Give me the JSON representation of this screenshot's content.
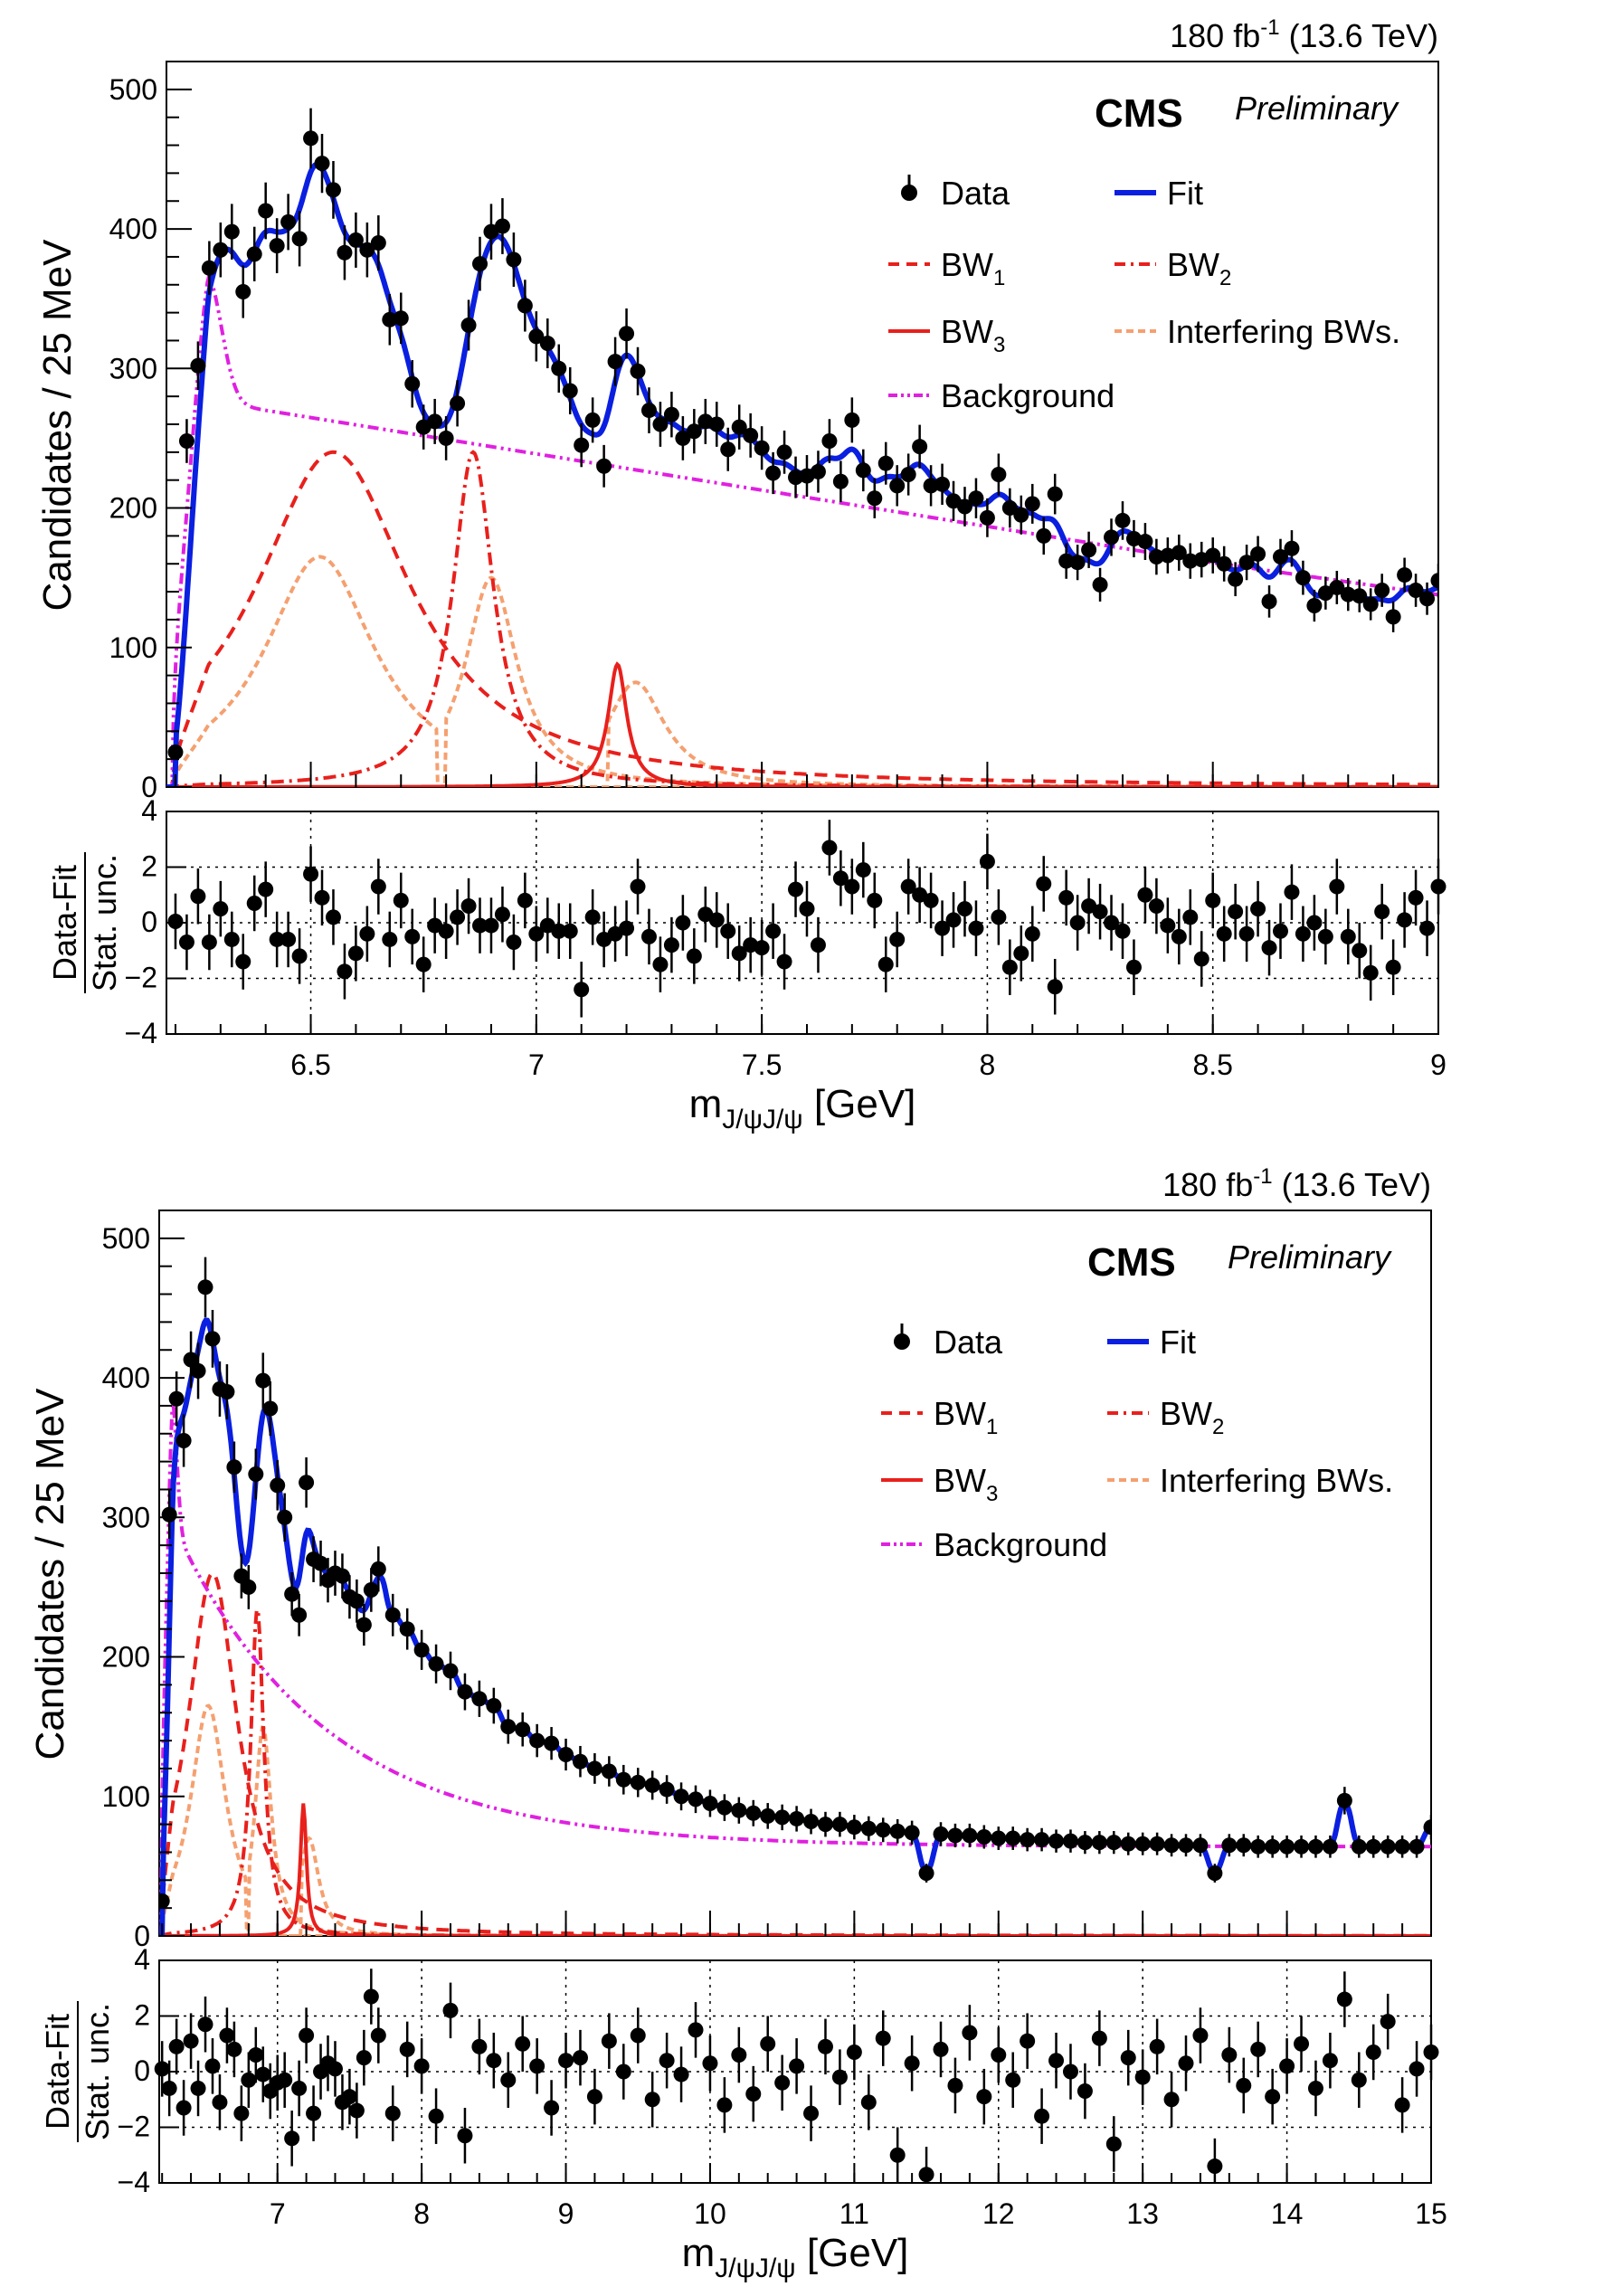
{
  "colors": {
    "data": "#000000",
    "fit": "#0a1fe0",
    "bw": "#e8201c",
    "interfering": "#f5a070",
    "background": "#e020e0",
    "grid": "#000000"
  },
  "chart_data": [
    {
      "id": "top",
      "type": "scatter",
      "lumi_label": "180 fb",
      "lumi_sup": "-1",
      "lumi_energy": " (13.6 TeV)",
      "cms_label": "CMS",
      "prelim_label": "Preliminary",
      "ylabel": "Candidates / 25 MeV",
      "xlabel_main": "m",
      "xlabel_sub": "J/ψJ/ψ",
      "xlabel_unit": " [GeV]",
      "res_label_num": "Data-Fit",
      "res_label_den": "Stat. unc.",
      "xlim": [
        6.18,
        9.0
      ],
      "ylim": [
        0,
        520
      ],
      "res_ylim": [
        -4,
        4
      ],
      "x_ticks": [
        6.5,
        7,
        7.5,
        8,
        8.5,
        9
      ],
      "x_tick_labels": [
        "6.5",
        "7",
        "7.5",
        "8",
        "8.5",
        "9"
      ],
      "y_ticks": [
        0,
        100,
        200,
        300,
        400,
        500
      ],
      "y_tick_labels": [
        "0",
        "100",
        "200",
        "300",
        "400",
        "500"
      ],
      "res_y_ticks": [
        -4,
        -2,
        0,
        2,
        4
      ],
      "res_y_tick_labels": [
        "−4",
        "−2",
        "0",
        "2",
        "4"
      ],
      "legend": {
        "data": "Data",
        "fit": "Fit",
        "bw1": "BW",
        "bw1_sub": "1",
        "bw2": "BW",
        "bw2_sub": "2",
        "bw3": "BW",
        "bw3_sub": "3",
        "interfering": "Interfering BWs.",
        "background": "Background"
      },
      "components": {
        "bw1": {
          "mass": 6.55,
          "width": 0.42,
          "peak": 240
        },
        "bw1_interf": {
          "mass": 6.52,
          "width": 0.3,
          "peak": 165
        },
        "bw2": {
          "mass": 6.86,
          "width": 0.11,
          "peak": 240
        },
        "bw2_interf": {
          "mass": 6.9,
          "width": 0.14,
          "peak": 150
        },
        "bw3": {
          "mass": 7.18,
          "width": 0.05,
          "peak": 88
        },
        "bw3_interf": {
          "mass": 7.22,
          "width": 0.16,
          "peak": 75
        }
      },
      "data_x": [
        6.2,
        6.225,
        6.25,
        6.275,
        6.3,
        6.325,
        6.35,
        6.375,
        6.4,
        6.425,
        6.45,
        6.475,
        6.5,
        6.525,
        6.55,
        6.575,
        6.6,
        6.625,
        6.65,
        6.675,
        6.7,
        6.725,
        6.75,
        6.775,
        6.8,
        6.825,
        6.85,
        6.875,
        6.9,
        6.925,
        6.95,
        6.975,
        7.0,
        7.025,
        7.05,
        7.075,
        7.1,
        7.125,
        7.15,
        7.175,
        7.2,
        7.225,
        7.25,
        7.275,
        7.3,
        7.325,
        7.35,
        7.375,
        7.4,
        7.425,
        7.45,
        7.475,
        7.5,
        7.525,
        7.55,
        7.575,
        7.6,
        7.625,
        7.65,
        7.675,
        7.7,
        7.725,
        7.75,
        7.775,
        7.8,
        7.825,
        7.85,
        7.875,
        7.9,
        7.925,
        7.95,
        7.975,
        8.0,
        8.025,
        8.05,
        8.075,
        8.1,
        8.125,
        8.15,
        8.175,
        8.2,
        8.225,
        8.25,
        8.275,
        8.3,
        8.325,
        8.35,
        8.375,
        8.4,
        8.425,
        8.45,
        8.475,
        8.5,
        8.525,
        8.55,
        8.575,
        8.6,
        8.625,
        8.65,
        8.675,
        8.7,
        8.725,
        8.75,
        8.775,
        8.8,
        8.825,
        8.85,
        8.875,
        8.9,
        8.925,
        8.95,
        8.975,
        9.0
      ],
      "data_y": [
        25,
        248,
        302,
        372,
        385,
        398,
        355,
        382,
        413,
        388,
        405,
        393,
        465,
        447,
        428,
        383,
        392,
        385,
        390,
        335,
        336,
        289,
        258,
        262,
        250,
        275,
        331,
        375,
        398,
        402,
        378,
        345,
        323,
        318,
        300,
        284,
        245,
        263,
        230,
        305,
        325,
        298,
        270,
        260,
        267,
        250,
        255,
        262,
        260,
        242,
        258,
        252,
        243,
        225,
        240,
        222,
        223,
        226,
        248,
        219,
        263,
        227,
        207,
        232,
        216,
        224,
        244,
        216,
        217,
        205,
        201,
        207,
        193,
        224,
        200,
        195,
        203,
        180,
        210,
        162,
        161,
        170,
        145,
        179,
        191,
        178,
        176,
        165,
        166,
        168,
        162,
        163,
        166,
        160,
        149,
        161,
        167,
        133,
        165,
        171,
        150,
        130,
        139,
        143,
        138,
        137,
        131,
        141,
        122,
        152,
        141,
        135,
        148
      ],
      "res_x": [
        6.2,
        6.225,
        6.25,
        6.275,
        6.3,
        6.325,
        6.35,
        6.375,
        6.4,
        6.425,
        6.45,
        6.475,
        6.5,
        6.525,
        6.55,
        6.575,
        6.6,
        6.625,
        6.65,
        6.675,
        6.7,
        6.725,
        6.75,
        6.775,
        6.8,
        6.825,
        6.85,
        6.875,
        6.9,
        6.925,
        6.95,
        6.975,
        7.0,
        7.025,
        7.05,
        7.075,
        7.1,
        7.125,
        7.15,
        7.175,
        7.2,
        7.225,
        7.25,
        7.275,
        7.3,
        7.325,
        7.35,
        7.375,
        7.4,
        7.425,
        7.45,
        7.475,
        7.5,
        7.525,
        7.55,
        7.575,
        7.6,
        7.625,
        7.65,
        7.675,
        7.7,
        7.725,
        7.75,
        7.775,
        7.8,
        7.825,
        7.85,
        7.875,
        7.9,
        7.925,
        7.95,
        7.975,
        8.0,
        8.025,
        8.05,
        8.075,
        8.1,
        8.125,
        8.15,
        8.175,
        8.2,
        8.225,
        8.25,
        8.275,
        8.3,
        8.325,
        8.35,
        8.375,
        8.4,
        8.425,
        8.45,
        8.475,
        8.5,
        8.525,
        8.55,
        8.575,
        8.6,
        8.625,
        8.65,
        8.675,
        8.7,
        8.725,
        8.75,
        8.775,
        8.8,
        8.825,
        8.85,
        8.875,
        8.9,
        8.925,
        8.95,
        8.975,
        9.0
      ],
      "res_y": [
        0.05,
        -0.7,
        0.95,
        -0.7,
        0.5,
        -0.6,
        -1.4,
        0.7,
        1.2,
        -0.6,
        -0.6,
        -1.2,
        1.75,
        0.9,
        0.2,
        -1.75,
        -1.1,
        -0.4,
        1.3,
        -0.6,
        0.8,
        -0.5,
        -1.5,
        -0.1,
        -0.3,
        0.2,
        0.6,
        -0.1,
        -0.1,
        0.3,
        -0.7,
        0.8,
        -0.4,
        -0.1,
        -0.3,
        -0.3,
        -2.4,
        0.2,
        -0.6,
        -0.4,
        -0.2,
        1.3,
        -0.5,
        -1.5,
        -0.8,
        0.0,
        -1.2,
        0.3,
        0.1,
        -0.3,
        -1.1,
        -0.8,
        -0.9,
        -0.3,
        -1.4,
        1.2,
        0.5,
        -0.8,
        2.7,
        1.6,
        1.3,
        1.9,
        0.8,
        -1.5,
        -0.6,
        1.3,
        1.0,
        0.8,
        -0.2,
        0.1,
        0.5,
        -0.2,
        2.2,
        0.2,
        -1.6,
        -1.1,
        -0.4,
        1.4,
        -2.3,
        0.9,
        0.0,
        0.6,
        0.4,
        0.0,
        -0.3,
        -1.6,
        1.0,
        0.6,
        -0.1,
        -0.5,
        0.2,
        -1.3,
        0.8,
        -0.4,
        0.4,
        -0.4,
        0.5,
        -0.9,
        -0.3,
        1.1,
        -0.4,
        0.0,
        -0.5,
        1.3,
        -0.5,
        -1.0,
        -1.8,
        0.4,
        -1.6,
        0.1,
        0.9,
        -0.2,
        1.3
      ]
    },
    {
      "id": "bottom",
      "type": "scatter",
      "lumi_label": "180 fb",
      "lumi_sup": "-1",
      "lumi_energy": " (13.6 TeV)",
      "cms_label": "CMS",
      "prelim_label": "Preliminary",
      "ylabel": "Candidates / 25 MeV",
      "xlabel_main": "m",
      "xlabel_sub": "J/ψJ/ψ",
      "xlabel_unit": " [GeV]",
      "res_label_num": "Data-Fit",
      "res_label_den": "Stat. unc.",
      "xlim": [
        6.18,
        15.0
      ],
      "ylim": [
        0,
        520
      ],
      "res_ylim": [
        -4,
        4
      ],
      "x_ticks": [
        7,
        8,
        9,
        10,
        11,
        12,
        13,
        14,
        15
      ],
      "x_tick_labels": [
        "7",
        "8",
        "9",
        "10",
        "11",
        "12",
        "13",
        "14",
        "15"
      ],
      "y_ticks": [
        0,
        100,
        200,
        300,
        400,
        500
      ],
      "y_tick_labels": [
        "0",
        "100",
        "200",
        "300",
        "400",
        "500"
      ],
      "res_y_ticks": [
        -4,
        -2,
        0,
        2,
        4
      ],
      "res_y_tick_labels": [
        "−4",
        "−2",
        "0",
        "2",
        "4"
      ],
      "legend": {
        "data": "Data",
        "fit": "Fit",
        "bw1": "BW",
        "bw1_sub": "1",
        "bw2": "BW",
        "bw2_sub": "2",
        "bw3": "BW",
        "bw3_sub": "3",
        "interfering": "Interfering BWs.",
        "background": "Background"
      },
      "components": {
        "bw1": {
          "mass": 6.55,
          "width": 0.42,
          "peak": 260
        },
        "bw1_interf": {
          "mass": 6.52,
          "width": 0.3,
          "peak": 165
        },
        "bw2": {
          "mass": 6.86,
          "width": 0.11,
          "peak": 235
        },
        "bw2_interf": {
          "mass": 6.9,
          "width": 0.14,
          "peak": 150
        },
        "bw3": {
          "mass": 7.18,
          "width": 0.05,
          "peak": 95
        },
        "bw3_interf": {
          "mass": 7.22,
          "width": 0.16,
          "peak": 70
        }
      },
      "data_x": [
        6.2,
        6.25,
        6.3,
        6.35,
        6.4,
        6.45,
        6.5,
        6.55,
        6.6,
        6.65,
        6.7,
        6.75,
        6.8,
        6.85,
        6.9,
        6.95,
        7.0,
        7.05,
        7.1,
        7.15,
        7.2,
        7.25,
        7.3,
        7.35,
        7.4,
        7.45,
        7.5,
        7.55,
        7.6,
        7.65,
        7.7,
        7.8,
        7.9,
        8.0,
        8.1,
        8.2,
        8.3,
        8.4,
        8.5,
        8.6,
        8.7,
        8.8,
        8.9,
        9.0,
        9.1,
        9.2,
        9.3,
        9.4,
        9.5,
        9.6,
        9.7,
        9.8,
        9.9,
        10.0,
        10.1,
        10.2,
        10.3,
        10.4,
        10.5,
        10.6,
        10.7,
        10.8,
        10.9,
        11.0,
        11.1,
        11.2,
        11.3,
        11.4,
        11.5,
        11.6,
        11.7,
        11.8,
        11.9,
        12.0,
        12.1,
        12.2,
        12.3,
        12.4,
        12.5,
        12.6,
        12.7,
        12.8,
        12.9,
        13.0,
        13.1,
        13.2,
        13.3,
        13.4,
        13.5,
        13.6,
        13.7,
        13.8,
        13.9,
        14.0,
        14.1,
        14.2,
        14.3,
        14.4,
        14.5,
        14.6,
        14.7,
        14.8,
        14.9,
        15.0
      ],
      "data_y": [
        25,
        302,
        385,
        355,
        413,
        405,
        465,
        428,
        392,
        390,
        336,
        258,
        250,
        331,
        398,
        378,
        323,
        300,
        245,
        230,
        325,
        270,
        267,
        255,
        260,
        258,
        243,
        240,
        223,
        248,
        263,
        230,
        220,
        205,
        195,
        190,
        175,
        170,
        165,
        150,
        148,
        140,
        138,
        130,
        125,
        120,
        118,
        112,
        110,
        108,
        105,
        100,
        98,
        95,
        92,
        90,
        88,
        86,
        85,
        84,
        82,
        80,
        80,
        78,
        77,
        76,
        75,
        74,
        45,
        73,
        72,
        72,
        71,
        70,
        70,
        69,
        69,
        68,
        68,
        67,
        67,
        67,
        66,
        66,
        66,
        65,
        65,
        65,
        45,
        65,
        65,
        64,
        64,
        64,
        64,
        64,
        64,
        97,
        64,
        64,
        64,
        64,
        64,
        78
      ],
      "res_x": [
        6.2,
        6.25,
        6.3,
        6.35,
        6.4,
        6.45,
        6.5,
        6.55,
        6.6,
        6.65,
        6.7,
        6.75,
        6.8,
        6.85,
        6.9,
        6.95,
        7.0,
        7.05,
        7.1,
        7.15,
        7.2,
        7.25,
        7.3,
        7.35,
        7.4,
        7.45,
        7.5,
        7.55,
        7.6,
        7.65,
        7.7,
        7.8,
        7.9,
        8.0,
        8.1,
        8.2,
        8.3,
        8.4,
        8.5,
        8.6,
        8.7,
        8.8,
        8.9,
        9.0,
        9.1,
        9.2,
        9.3,
        9.4,
        9.5,
        9.6,
        9.7,
        9.8,
        9.9,
        10.0,
        10.1,
        10.2,
        10.3,
        10.4,
        10.5,
        10.6,
        10.7,
        10.8,
        10.9,
        11.0,
        11.1,
        11.2,
        11.3,
        11.4,
        11.5,
        11.6,
        11.7,
        11.8,
        11.9,
        12.0,
        12.1,
        12.2,
        12.3,
        12.4,
        12.5,
        12.6,
        12.7,
        12.8,
        12.9,
        13.0,
        13.1,
        13.2,
        13.3,
        13.4,
        13.5,
        13.6,
        13.7,
        13.8,
        13.9,
        14.0,
        14.1,
        14.2,
        14.3,
        14.4,
        14.5,
        14.6,
        14.7,
        14.8,
        14.9,
        15.0
      ],
      "res_y": [
        0.1,
        -0.6,
        0.9,
        -1.3,
        1.1,
        -0.6,
        1.7,
        0.2,
        -1.1,
        1.3,
        0.8,
        -1.5,
        -0.3,
        0.6,
        -0.1,
        -0.7,
        -0.4,
        -0.3,
        -2.4,
        -0.6,
        1.3,
        -1.5,
        0.0,
        0.3,
        0.1,
        -1.1,
        -0.9,
        -1.4,
        0.5,
        2.7,
        1.3,
        -1.5,
        0.8,
        0.2,
        -1.6,
        2.2,
        -2.3,
        0.9,
        0.4,
        -0.3,
        1.0,
        0.2,
        -1.3,
        0.4,
        0.5,
        -0.9,
        1.1,
        0.0,
        1.3,
        -1.0,
        0.4,
        -0.1,
        1.5,
        0.3,
        -1.2,
        0.6,
        -0.8,
        1.0,
        -0.4,
        0.2,
        -1.5,
        0.9,
        -0.2,
        0.7,
        -1.1,
        1.2,
        -3.0,
        0.3,
        -3.7,
        0.8,
        -0.5,
        1.4,
        -0.9,
        0.6,
        -0.3,
        1.1,
        -1.6,
        0.4,
        0.0,
        -0.7,
        1.2,
        -2.6,
        0.5,
        -0.2,
        0.9,
        -1.0,
        0.3,
        1.3,
        -3.4,
        0.6,
        -0.5,
        0.8,
        -0.9,
        0.2,
        1.0,
        -0.6,
        0.4,
        2.6,
        -0.3,
        0.7,
        1.8,
        -1.2,
        0.1,
        0.7
      ]
    }
  ]
}
